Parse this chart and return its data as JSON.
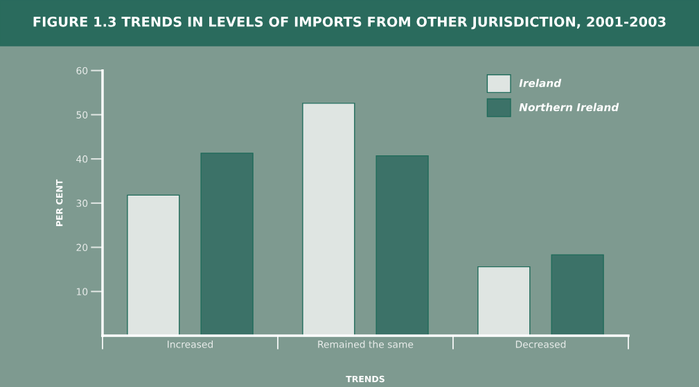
{
  "chart_data": {
    "type": "bar",
    "title": "FIGURE 1.3 TRENDS IN LEVELS OF IMPORTS FROM OTHER JURISDICTION, 2001-2003",
    "xlabel": "TRENDS",
    "ylabel": "PER CENT",
    "categories": [
      "Increased",
      "Remained the same",
      "Decreased"
    ],
    "series": [
      {
        "name": "Ireland",
        "color": "#dfe5e2",
        "values": [
          31.8,
          52.6,
          15.6
        ]
      },
      {
        "name": "Northern Ireland",
        "color": "#3c7268",
        "values": [
          41.3,
          40.7,
          18.3
        ]
      }
    ],
    "ylim": [
      0,
      60
    ],
    "yticks": [
      10,
      20,
      30,
      40,
      50,
      60
    ],
    "legend": "top right",
    "grid": false
  }
}
